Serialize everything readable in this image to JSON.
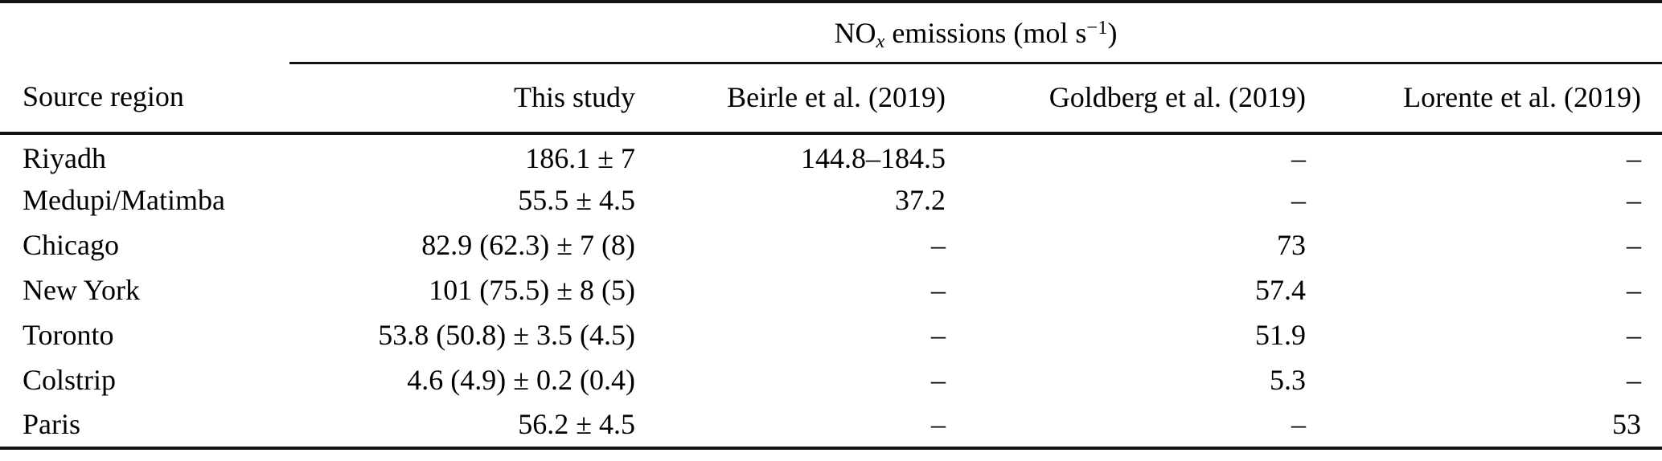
{
  "table": {
    "group_header": {
      "prefix": "NO",
      "subscript": "x",
      "middle": " emissions (mol s",
      "superscript": "−1",
      "suffix": ")"
    },
    "columns": [
      "Source region",
      "This study",
      "Beirle et al. (2019)",
      "Goldberg et al. (2019)",
      "Lorente et al. (2019)"
    ],
    "rows": [
      {
        "region": "Riyadh",
        "this_study": "186.1 ± 7",
        "beirle": "144.8–184.5",
        "goldberg": "–",
        "lorente": "–"
      },
      {
        "region": "Medupi/Matimba",
        "this_study": "55.5 ± 4.5",
        "beirle": "37.2",
        "goldberg": "–",
        "lorente": "–"
      },
      {
        "region": "Chicago",
        "this_study": "82.9 (62.3) ± 7 (8)",
        "beirle": "–",
        "goldberg": "73",
        "lorente": "–"
      },
      {
        "region": "New York",
        "this_study": "101 (75.5) ± 8 (5)",
        "beirle": "–",
        "goldberg": "57.4",
        "lorente": "–"
      },
      {
        "region": "Toronto",
        "this_study": "53.8 (50.8) ± 3.5 (4.5)",
        "beirle": "–",
        "goldberg": "51.9",
        "lorente": "–"
      },
      {
        "region": "Colstrip",
        "this_study": "4.6 (4.9) ± 0.2 (0.4)",
        "beirle": "–",
        "goldberg": "5.3",
        "lorente": "–"
      },
      {
        "region": "Paris",
        "this_study": "56.2 ± 4.5",
        "beirle": "–",
        "goldberg": "–",
        "lorente": "53"
      }
    ]
  },
  "colors": {
    "text": "#000000",
    "rule": "#141414",
    "background": "#ffffff"
  }
}
